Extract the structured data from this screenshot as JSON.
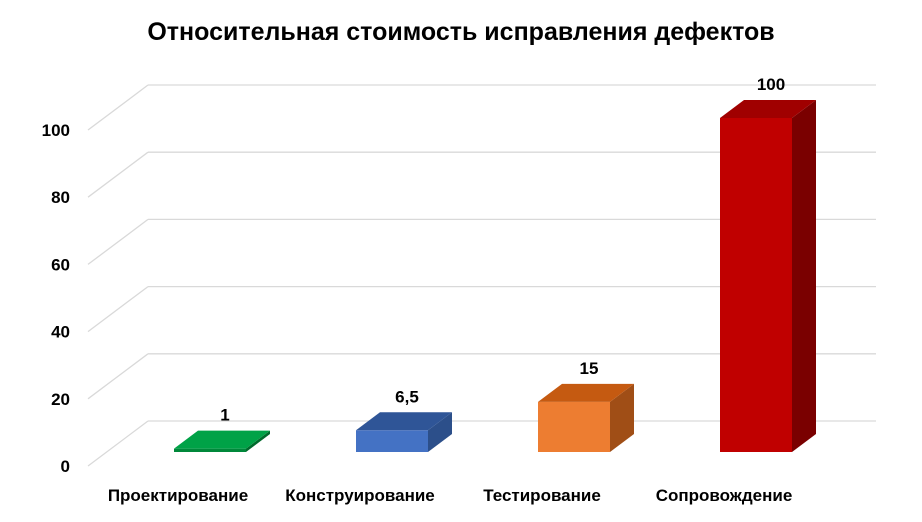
{
  "chart_data": {
    "type": "bar",
    "title": "Относительная стоимость исправления дефектов",
    "categories": [
      "Проектирование",
      "Конструирование",
      "Тестирование",
      "Сопровождение"
    ],
    "values": [
      1,
      6.5,
      15,
      100
    ],
    "data_labels": [
      "1",
      "6,5",
      "15",
      "100"
    ],
    "colors": [
      {
        "front": "#00883a",
        "top": "#00a247",
        "side": "#006a2c"
      },
      {
        "front": "#4472c4",
        "top": "#2f5597",
        "side": "#2c4f8a"
      },
      {
        "front": "#ed7d31",
        "top": "#c55a11",
        "side": "#a04e16"
      },
      {
        "front": "#c00000",
        "top": "#a00000",
        "side": "#7a0000"
      }
    ],
    "yticks": [
      0,
      20,
      40,
      60,
      80,
      100
    ],
    "ylim": [
      0,
      100
    ],
    "xlabel": "",
    "ylabel": "",
    "grid": true,
    "style": "3d-column"
  }
}
